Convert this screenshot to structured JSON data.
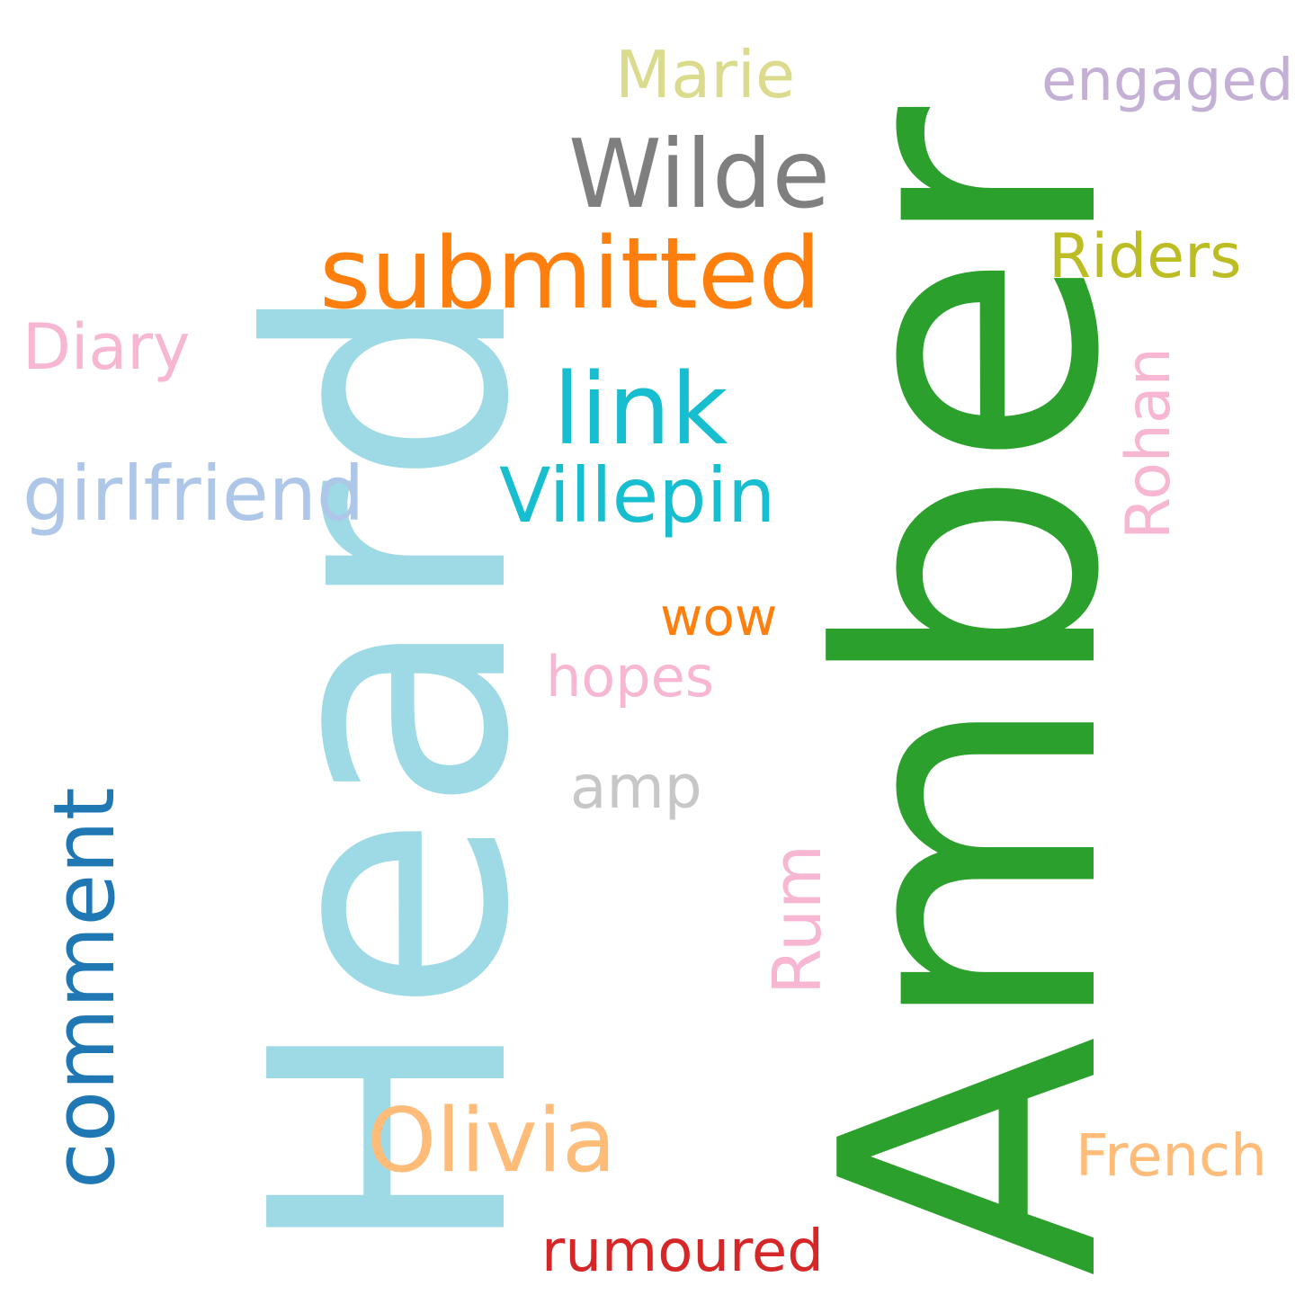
{
  "words": [
    {
      "text": "Amber",
      "color": "#2ca02c",
      "orientation": "vertical"
    },
    {
      "text": "Heard",
      "color": "#9edae5",
      "orientation": "vertical"
    },
    {
      "text": "submitted",
      "color": "#ff7f0e",
      "orientation": "horizontal"
    },
    {
      "text": "Wilde",
      "color": "#7f7f7f",
      "orientation": "horizontal"
    },
    {
      "text": "comment",
      "color": "#1f77b4",
      "orientation": "vertical"
    },
    {
      "text": "link",
      "color": "#17becf",
      "orientation": "horizontal"
    },
    {
      "text": "Olivia",
      "color": "#ffbb78",
      "orientation": "horizontal"
    },
    {
      "text": "Villepin",
      "color": "#17becf",
      "orientation": "horizontal"
    },
    {
      "text": "girlfriend",
      "color": "#aec7e8",
      "orientation": "horizontal"
    },
    {
      "text": "Marie",
      "color": "#dbdb8d",
      "orientation": "horizontal"
    },
    {
      "text": "Riders",
      "color": "#bcbd22",
      "orientation": "horizontal"
    },
    {
      "text": "Diary",
      "color": "#f7b6d2",
      "orientation": "horizontal"
    },
    {
      "text": "Rohan",
      "color": "#f7b6d2",
      "orientation": "vertical"
    },
    {
      "text": "engaged",
      "color": "#c5b0d5",
      "orientation": "horizontal"
    },
    {
      "text": "French",
      "color": "#ffbb78",
      "orientation": "horizontal"
    },
    {
      "text": "Rum",
      "color": "#f7b6d2",
      "orientation": "vertical"
    },
    {
      "text": "rumoured",
      "color": "#d62728",
      "orientation": "horizontal"
    },
    {
      "text": "amp",
      "color": "#c7c7c7",
      "orientation": "horizontal"
    },
    {
      "text": "hopes",
      "color": "#f7b6d2",
      "orientation": "horizontal"
    },
    {
      "text": "wow",
      "color": "#ff7f0e",
      "orientation": "horizontal"
    }
  ]
}
